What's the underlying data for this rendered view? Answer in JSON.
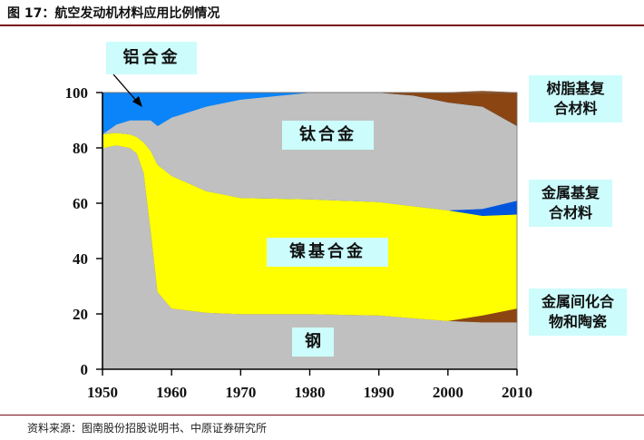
{
  "figure_title": "图 17：航空发动机材料应用比例情况",
  "source_note": "资料来源：图南股份招股说明书、中原证券研究所",
  "chart_data": {
    "type": "area",
    "stacked": true,
    "x": [
      1950,
      1952,
      1954,
      1955,
      1956,
      1957,
      1958,
      1960,
      1965,
      1970,
      1980,
      1990,
      1995,
      2000,
      2005,
      2010
    ],
    "xlim": [
      1950,
      2010
    ],
    "ylim": [
      0,
      100
    ],
    "x_ticks": [
      "1950",
      "1960",
      "1970",
      "1980",
      "1990",
      "2000",
      "2010"
    ],
    "y_ticks": [
      "0",
      "20",
      "40",
      "60",
      "80",
      "100"
    ],
    "grid": false,
    "series": [
      {
        "name": "钢",
        "color": "#c0c0c0",
        "values": [
          80,
          81,
          80,
          78,
          71,
          50,
          28,
          22,
          20.5,
          20,
          20,
          19.5,
          18.5,
          17.5,
          17,
          17
        ]
      },
      {
        "name": "金属间化合物和陶瓷",
        "color": "#8b4513",
        "values": [
          0,
          0,
          0,
          0,
          0,
          0,
          0,
          0,
          0,
          0,
          0,
          0,
          0,
          0,
          2.5,
          5
        ]
      },
      {
        "name": "镍基合金",
        "color": "#ffff00",
        "values": [
          5,
          4.5,
          5,
          6,
          11,
          29,
          46,
          48,
          44,
          42,
          41.5,
          41,
          40.5,
          40,
          36,
          34
        ]
      },
      {
        "name": "金属基复合材料",
        "color": "#0055dd",
        "values": [
          0,
          0,
          0,
          0,
          0,
          0,
          0,
          0,
          0,
          0,
          0,
          0,
          0,
          0,
          2.5,
          5
        ]
      },
      {
        "name": "钛合金",
        "color": "#c0c0c0",
        "values": [
          0,
          3,
          5,
          6,
          8,
          11,
          14,
          21,
          30.5,
          35.5,
          38.5,
          39.5,
          40,
          39,
          37,
          27
        ]
      },
      {
        "name": "铝合金",
        "color": "#0a84f8",
        "values": [
          15,
          11.5,
          10,
          10,
          10,
          10,
          12,
          9,
          5,
          2.5,
          0,
          0,
          0,
          0,
          0,
          0
        ]
      },
      {
        "name": "树脂基复合材料",
        "color": "#8b4513",
        "values": [
          0,
          0,
          0,
          0,
          0,
          0,
          0,
          0,
          0,
          0,
          0,
          0,
          1,
          3.5,
          5.5,
          12
        ]
      }
    ],
    "labels": {
      "aluminum": "铝合金",
      "titanium": "钛合金",
      "nickel": "镍基合金",
      "steel": "钢",
      "resin": "树脂基复合材料",
      "mmc": "金属基复合材料",
      "intermetallic": "金属间化合物和陶瓷"
    },
    "label_lines": {
      "resin": [
        "树脂基复",
        "合材料"
      ],
      "mmc": [
        "金属基复",
        "合材料"
      ],
      "intermetallic": [
        "金属间化合",
        "物和陶瓷"
      ]
    }
  }
}
